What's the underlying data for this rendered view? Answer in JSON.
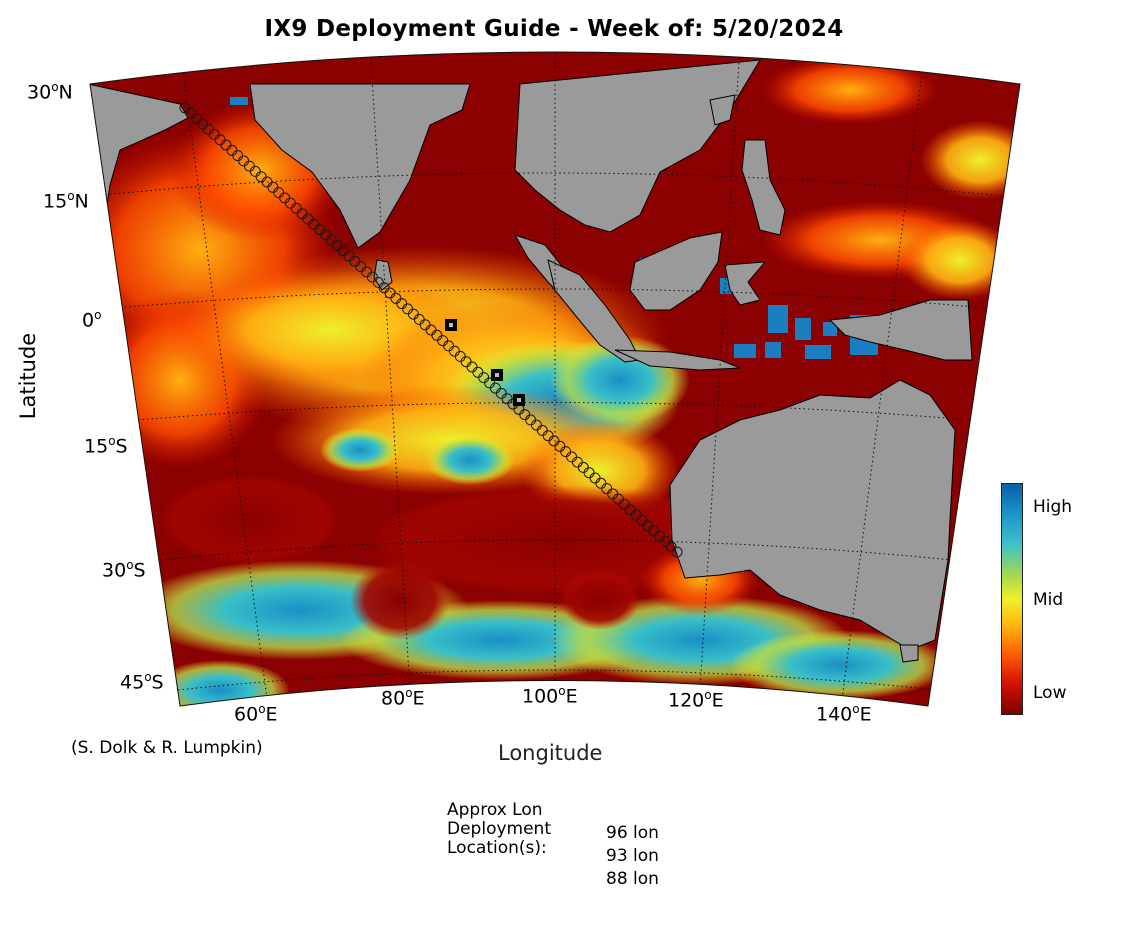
{
  "title": "IX9 Deployment Guide - Week of: 5/20/2024",
  "axes": {
    "ylabel": "Latitude",
    "xlabel": "Longitude",
    "lat_ticks": [
      {
        "deg": "30",
        "hemi": "N"
      },
      {
        "deg": "15",
        "hemi": "N"
      },
      {
        "deg": "0",
        "hemi": ""
      },
      {
        "deg": "15",
        "hemi": "S"
      },
      {
        "deg": "30",
        "hemi": "S"
      },
      {
        "deg": "45",
        "hemi": "S"
      }
    ],
    "lon_ticks": [
      {
        "deg": "60",
        "hemi": "E"
      },
      {
        "deg": "80",
        "hemi": "E"
      },
      {
        "deg": "100",
        "hemi": "E"
      },
      {
        "deg": "120",
        "hemi": "E"
      },
      {
        "deg": "140",
        "hemi": "E"
      }
    ]
  },
  "credit": "(S. Dolk & R. Lumpkin)",
  "colorbar": {
    "labels": [
      "High",
      "Mid",
      "Low"
    ],
    "colors": [
      "#0a5fa8",
      "#f1ef2a",
      "#7a0000"
    ]
  },
  "deployment": {
    "heading_lines": [
      "Approx Lon",
      "Deployment",
      "Location(s):"
    ],
    "locations": [
      "96 lon",
      "93 lon",
      "88 lon"
    ]
  },
  "colors": {
    "land": "#9a9a9a",
    "ocean_low": "#8b0000",
    "track": "#1a1a1a"
  }
}
